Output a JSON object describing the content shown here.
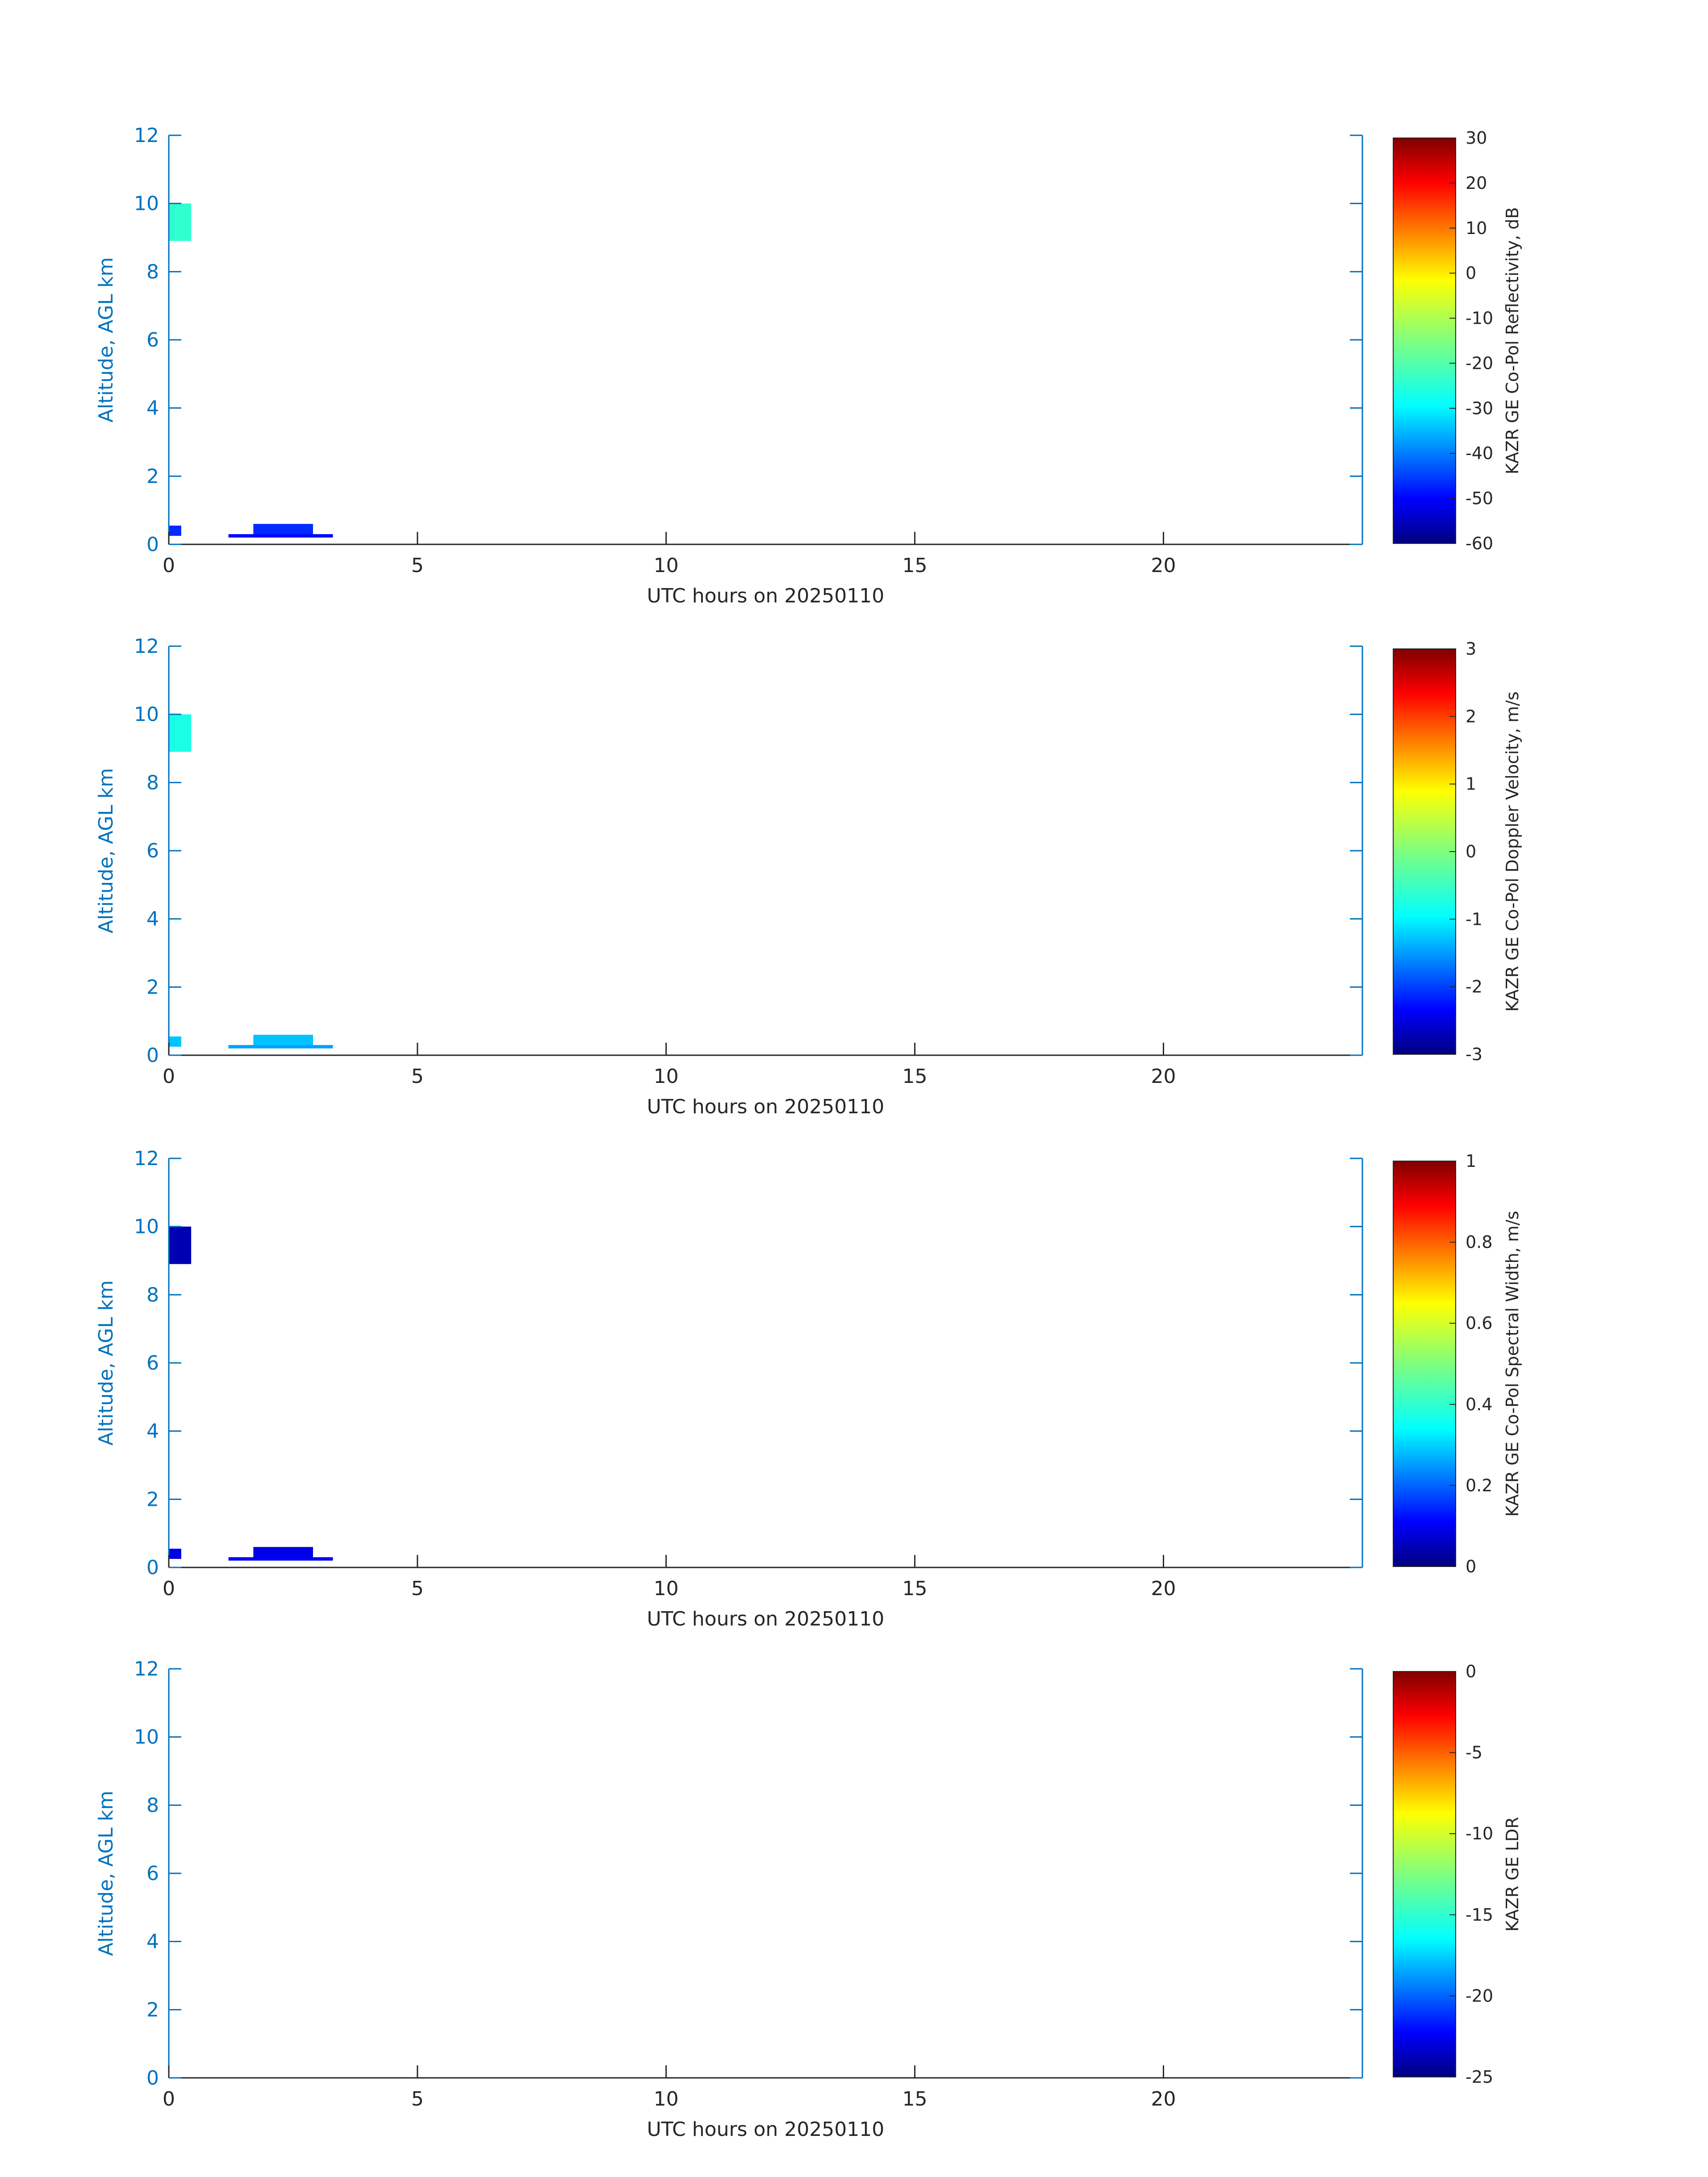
{
  "chart_data": [
    {
      "type": "heatmap",
      "xlabel": "UTC hours on 20250110",
      "ylabel": "Altitude, AGL km",
      "xlim": [
        0,
        24
      ],
      "ylim": [
        0,
        12
      ],
      "xticks": [
        0,
        5,
        10,
        15,
        20
      ],
      "yticks": [
        0,
        2,
        4,
        6,
        8,
        10,
        12
      ],
      "grid": false,
      "colorbar": {
        "label": "KAZR GE Co-Pol Reflectivity, dB",
        "min": -60,
        "max": 30,
        "ticks": [
          -60,
          -50,
          -40,
          -30,
          -20,
          -10,
          0,
          10,
          20,
          30
        ],
        "colormap": "jet"
      },
      "features": [
        {
          "x": [
            0.0,
            0.45
          ],
          "y": [
            8.9,
            10.0
          ],
          "value": -22
        },
        {
          "x": [
            0.0,
            0.25
          ],
          "y": [
            0.25,
            0.55
          ],
          "value": -45
        },
        {
          "x": [
            1.7,
            2.9
          ],
          "y": [
            0.25,
            0.6
          ],
          "value": -45
        },
        {
          "x": [
            1.2,
            3.3
          ],
          "y": [
            0.2,
            0.3
          ],
          "value": -48
        }
      ]
    },
    {
      "type": "heatmap",
      "xlabel": "UTC hours on 20250110",
      "ylabel": "Altitude, AGL km",
      "xlim": [
        0,
        24
      ],
      "ylim": [
        0,
        12
      ],
      "xticks": [
        0,
        5,
        10,
        15,
        20
      ],
      "yticks": [
        0,
        2,
        4,
        6,
        8,
        10,
        12
      ],
      "grid": false,
      "colorbar": {
        "label": "KAZR GE Co-Pol Doppler Velocity, m/s",
        "min": -3,
        "max": 3,
        "ticks": [
          -3,
          -2,
          -1,
          0,
          1,
          2,
          3
        ],
        "colormap": "jet"
      },
      "features": [
        {
          "x": [
            0.0,
            0.45
          ],
          "y": [
            8.9,
            10.0
          ],
          "value": -0.6
        },
        {
          "x": [
            0.0,
            0.25
          ],
          "y": [
            0.25,
            0.55
          ],
          "value": -1.1
        },
        {
          "x": [
            1.7,
            2.9
          ],
          "y": [
            0.25,
            0.6
          ],
          "value": -1.1
        },
        {
          "x": [
            1.2,
            3.3
          ],
          "y": [
            0.2,
            0.3
          ],
          "value": -1.3
        }
      ]
    },
    {
      "type": "heatmap",
      "xlabel": "UTC hours on 20250110",
      "ylabel": "Altitude, AGL km",
      "xlim": [
        0,
        24
      ],
      "ylim": [
        0,
        12
      ],
      "xticks": [
        0,
        5,
        10,
        15,
        20
      ],
      "yticks": [
        0,
        2,
        4,
        6,
        8,
        10,
        12
      ],
      "grid": false,
      "colorbar": {
        "label": "KAZR GE Co-Pol Spectral Width, m/s",
        "min": 0,
        "max": 1,
        "ticks": [
          0,
          0.2,
          0.4,
          0.6,
          0.8,
          1
        ],
        "colormap": "jet"
      },
      "features": [
        {
          "x": [
            0.0,
            0.45
          ],
          "y": [
            8.9,
            10.0
          ],
          "value": 0.05
        },
        {
          "x": [
            0.0,
            0.25
          ],
          "y": [
            0.25,
            0.55
          ],
          "value": 0.1
        },
        {
          "x": [
            1.7,
            2.9
          ],
          "y": [
            0.25,
            0.6
          ],
          "value": 0.1
        },
        {
          "x": [
            1.2,
            3.3
          ],
          "y": [
            0.2,
            0.3
          ],
          "value": 0.12
        }
      ]
    },
    {
      "type": "heatmap",
      "xlabel": "UTC hours on 20250110",
      "ylabel": "Altitude, AGL km",
      "xlim": [
        0,
        24
      ],
      "ylim": [
        0,
        12
      ],
      "xticks": [
        0,
        5,
        10,
        15,
        20
      ],
      "yticks": [
        0,
        2,
        4,
        6,
        8,
        10,
        12
      ],
      "grid": false,
      "colorbar": {
        "label": "KAZR GE LDR",
        "min": -25,
        "max": 0,
        "ticks": [
          -25,
          -20,
          -15,
          -10,
          -5,
          0
        ],
        "colormap": "jet"
      },
      "features": []
    }
  ]
}
